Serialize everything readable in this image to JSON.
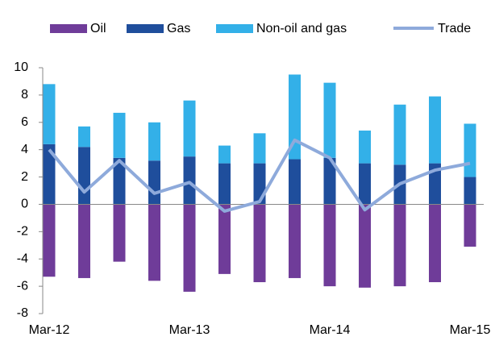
{
  "chart_data": {
    "type": "stacked_bar_line",
    "categories": [
      "Mar-12",
      null,
      null,
      null,
      "Mar-13",
      null,
      null,
      null,
      "Mar-14",
      null,
      null,
      null,
      "Mar-15"
    ],
    "series": [
      {
        "name": "Oil",
        "color": "#6f3c99",
        "type": "bar",
        "values": [
          -5.3,
          -5.4,
          -4.2,
          -5.6,
          -6.4,
          -5.1,
          -5.7,
          -5.4,
          -6.0,
          -6.1,
          -6.0,
          -5.7,
          -3.1
        ]
      },
      {
        "name": "Gas",
        "color": "#1f4e9c",
        "type": "bar",
        "values": [
          4.4,
          4.2,
          3.4,
          3.2,
          3.5,
          3.0,
          3.0,
          3.3,
          3.4,
          3.0,
          2.9,
          3.0,
          2.0
        ]
      },
      {
        "name": "Non-oil and gas",
        "color": "#33b0e8",
        "type": "bar",
        "values": [
          4.4,
          1.5,
          3.3,
          2.8,
          4.1,
          1.3,
          2.2,
          6.2,
          5.5,
          2.4,
          4.4,
          4.9,
          3.9
        ]
      },
      {
        "name": "Trade",
        "color": "#8eaadb",
        "type": "line",
        "values": [
          4.0,
          0.9,
          3.2,
          0.8,
          1.6,
          -0.5,
          0.2,
          4.7,
          3.4,
          -0.4,
          1.5,
          2.5,
          3.0
        ]
      }
    ],
    "ylim": [
      -8,
      10
    ],
    "yticks": [
      -8,
      -6,
      -4,
      -2,
      0,
      2,
      4,
      6,
      8,
      10
    ],
    "legend": "top"
  }
}
